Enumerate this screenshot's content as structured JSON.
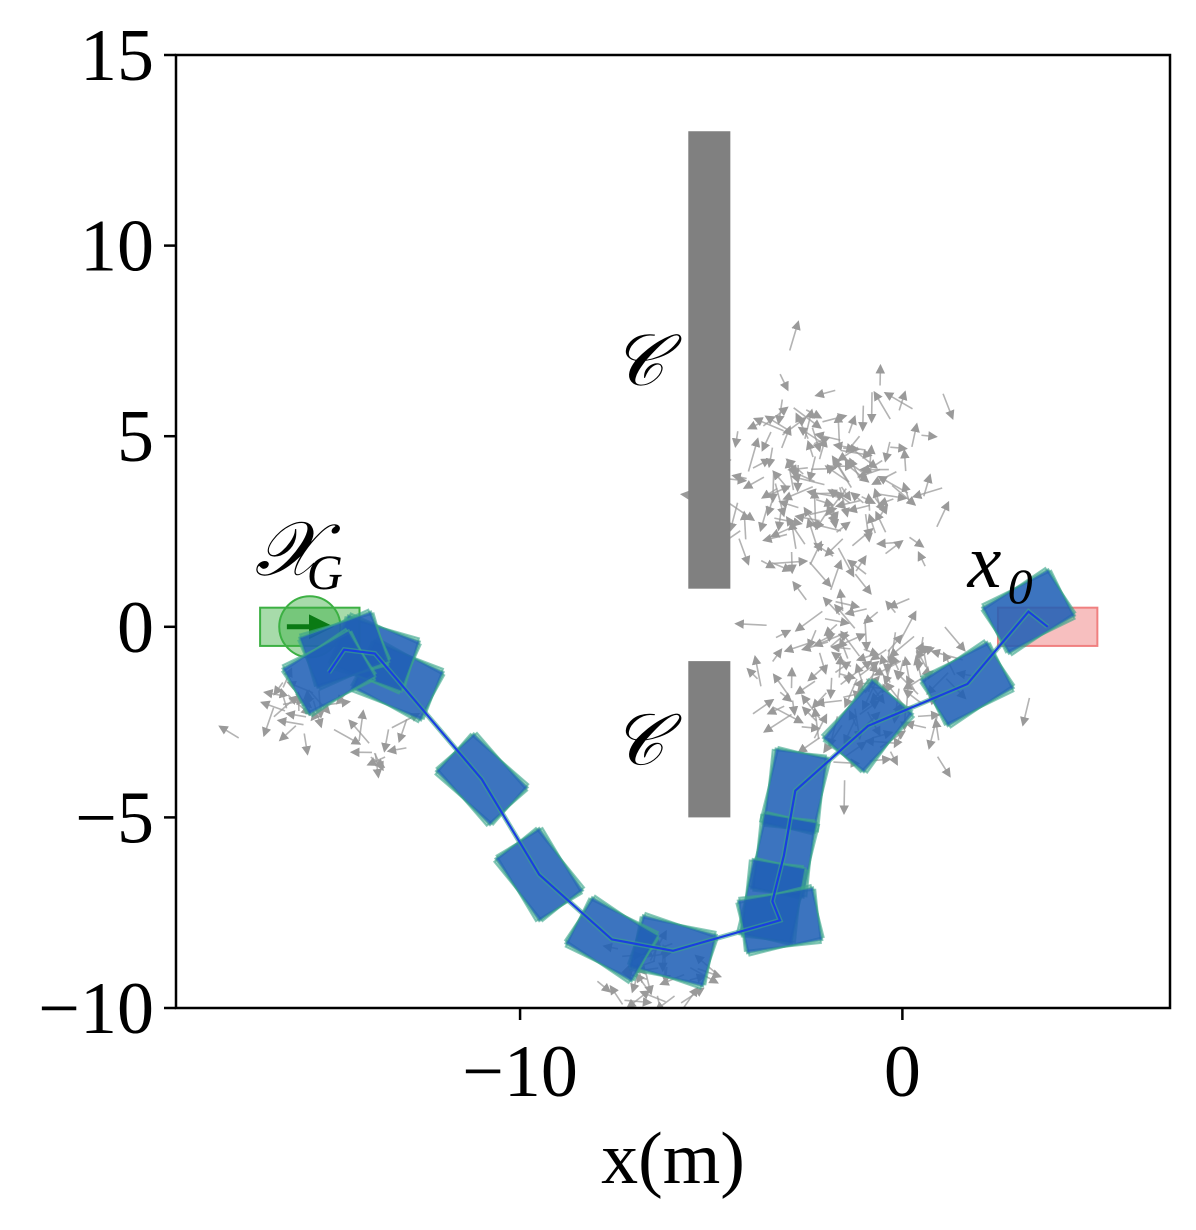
{
  "chart_data": {
    "type": "scatter",
    "xlabel": "x(m)",
    "ylabel": "",
    "xlim": [
      -19,
      7
    ],
    "ylim": [
      -10,
      15
    ],
    "xticks": [
      -10,
      0
    ],
    "xtick_labels": [
      "−10",
      "0"
    ],
    "yticks": [
      -10,
      -5,
      0,
      5,
      10,
      15
    ],
    "ytick_labels": [
      "−10",
      "−5",
      "0",
      "5",
      "10",
      "15"
    ],
    "grid": false,
    "obstacles": [
      {
        "label": "𝒞",
        "x0": -5.6,
        "x1": -4.5,
        "y0": 1.0,
        "y1": 13.0
      },
      {
        "label": "𝒞",
        "x0": -5.6,
        "x1": -4.5,
        "y0": -5.0,
        "y1": -0.9
      }
    ],
    "start": {
      "label": "x",
      "sub": "0",
      "x": 3.8,
      "y": 0.0,
      "heading_deg": 0
    },
    "goal": {
      "label": "𝒳",
      "sub": "G",
      "x": -15.5,
      "y": 0.0,
      "radius": 0.8
    },
    "trajectory": [
      {
        "x": 3.3,
        "y": 0.4,
        "heading_deg": 30
      },
      {
        "x": 1.7,
        "y": -1.5,
        "heading_deg": 30
      },
      {
        "x": -0.9,
        "y": -2.6,
        "heading_deg": 50
      },
      {
        "x": -2.8,
        "y": -4.3,
        "heading_deg": 80
      },
      {
        "x": -3.1,
        "y": -6.0,
        "heading_deg": 80
      },
      {
        "x": -3.4,
        "y": -7.2,
        "heading_deg": 80
      },
      {
        "x": -3.2,
        "y": -7.7,
        "heading_deg": 10
      },
      {
        "x": -6.0,
        "y": -8.5,
        "heading_deg": -15
      },
      {
        "x": -7.6,
        "y": -8.2,
        "heading_deg": -30
      },
      {
        "x": -9.5,
        "y": -6.5,
        "heading_deg": -55
      },
      {
        "x": -11.0,
        "y": -4.0,
        "heading_deg": -45
      },
      {
        "x": -13.2,
        "y": -1.4,
        "heading_deg": -25
      },
      {
        "x": -13.8,
        "y": -0.7,
        "heading_deg": -20
      },
      {
        "x": -14.6,
        "y": -0.6,
        "heading_deg": 20
      },
      {
        "x": -15.0,
        "y": -1.2,
        "heading_deg": 30
      }
    ],
    "sample_regions": [
      {
        "cx": -2.0,
        "cy": 3.5,
        "sx": 2.5,
        "sy": 2.5,
        "n": 160
      },
      {
        "cx": -1.0,
        "cy": -1.5,
        "sx": 2.2,
        "sy": 1.6,
        "n": 120
      },
      {
        "cx": -16.0,
        "cy": -2.0,
        "sx": 1.0,
        "sy": 0.6,
        "n": 25
      },
      {
        "cx": -13.5,
        "cy": -3.0,
        "sx": 0.8,
        "sy": 0.5,
        "n": 12
      },
      {
        "cx": -6.5,
        "cy": -9.0,
        "sx": 1.2,
        "sy": 0.8,
        "n": 30
      }
    ],
    "colors": {
      "obstacle": "#808080",
      "vehicle": "#1a4fc0",
      "vehicle_edge": "#3aa58a",
      "trajectory_line": "#1a3fe0",
      "goal": "#3cb043",
      "goal_arrow": "#0a7a14",
      "start": "#f08080",
      "samples": "#9a9a9a"
    }
  }
}
